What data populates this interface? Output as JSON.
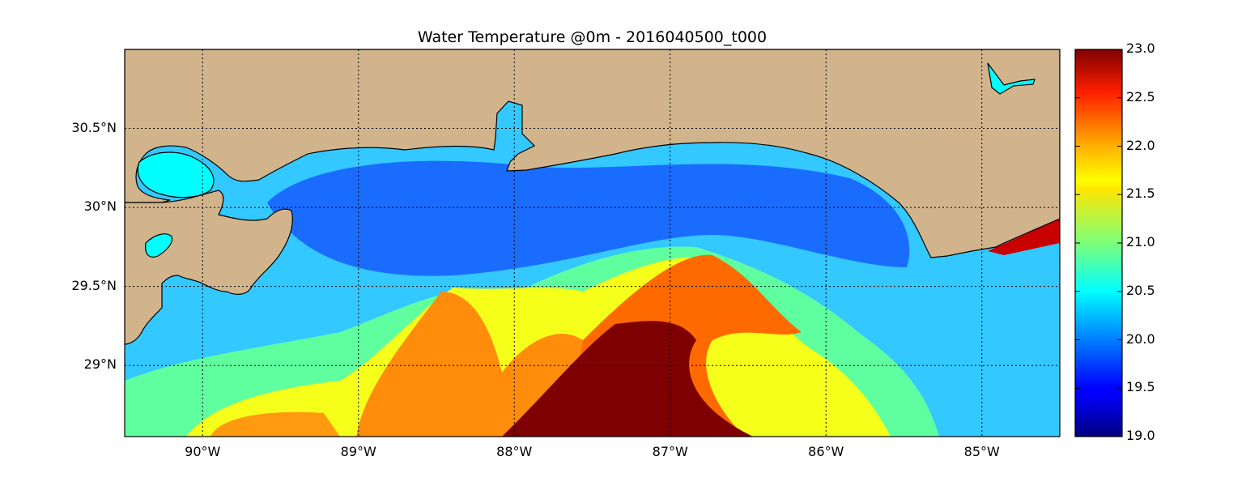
{
  "title": "Water Temperature @0m - 2016040500_t000",
  "map": {
    "lon_range": [
      -90.5,
      -84.5
    ],
    "lat_range": [
      28.55,
      31.0
    ],
    "land_color": "#d2b48c",
    "coastline_color": "#000000",
    "grid": "dotted",
    "lat_ticks": [
      {
        "value": 30.5,
        "label": "30.5°N"
      },
      {
        "value": 30.0,
        "label": "30°N"
      },
      {
        "value": 29.5,
        "label": "29.5°N"
      },
      {
        "value": 29.0,
        "label": "29°N"
      }
    ],
    "lon_ticks": [
      {
        "value": -90,
        "label": "90°W"
      },
      {
        "value": -89,
        "label": "89°W"
      },
      {
        "value": -88,
        "label": "88°W"
      },
      {
        "value": -87,
        "label": "87°W"
      },
      {
        "value": -86,
        "label": "86°W"
      },
      {
        "value": -85,
        "label": "85°W"
      }
    ]
  },
  "colorbar": {
    "colormap": "jet",
    "min": 19.0,
    "max": 23.0,
    "ticks": [
      "23.0",
      "22.5",
      "22.0",
      "21.5",
      "21.0",
      "20.5",
      "20.0",
      "19.5",
      "19.0"
    ]
  }
}
